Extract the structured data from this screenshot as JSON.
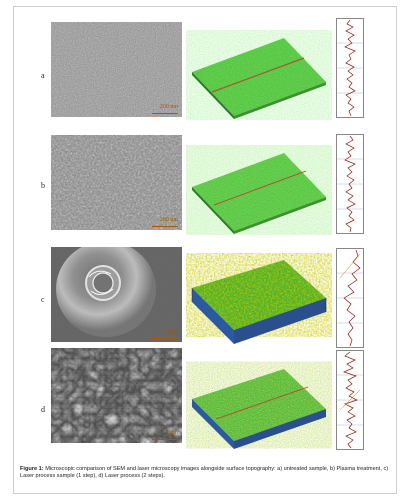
{
  "rows": [
    {
      "id": "a",
      "label": "a",
      "scale": "200 nm"
    },
    {
      "id": "b",
      "label": "b",
      "scale": "200 nm"
    },
    {
      "id": "c",
      "label": "c",
      "scale": "5 µm"
    },
    {
      "id": "d",
      "label": "d",
      "scale": "5 µm"
    }
  ],
  "caption": {
    "figure_label": "Figure 1:",
    "text": "Microscopic comparison of SEM and laser microscopy images alongside surface topography: a) untreated sample, b) Plasma treatment, c) Laser process sample (1 step), d) Laser process (2 steps)."
  },
  "colors": {
    "surface_green": "#4fbf3a",
    "surface_red": "#c0392b",
    "surface_blue": "#2c5aa0",
    "profile_red": "#8b1a10",
    "scale_text": "#a55a00"
  }
}
